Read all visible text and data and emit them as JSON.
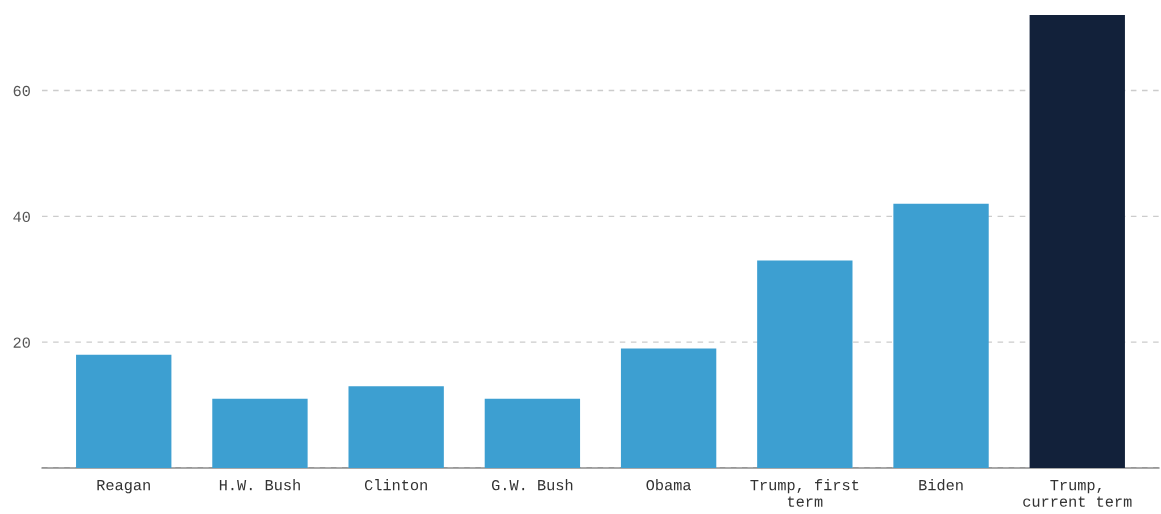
{
  "chart_data": {
    "type": "bar",
    "categories": [
      "Reagan",
      "H.W. Bush",
      "Clinton",
      "G.W. Bush",
      "Obama",
      "Trump, first\nterm",
      "Biden",
      "Trump,\ncurrent term"
    ],
    "values": [
      18,
      11,
      13,
      11,
      19,
      33,
      42,
      72
    ],
    "colors": [
      "#3d9fd1",
      "#3d9fd1",
      "#3d9fd1",
      "#3d9fd1",
      "#3d9fd1",
      "#3d9fd1",
      "#3d9fd1",
      "#12213a"
    ],
    "ylim": [
      0,
      72
    ],
    "yticks": [
      {
        "value": 0,
        "label": null
      },
      20,
      40,
      60
    ],
    "grid": "y",
    "line_style": "dashed"
  }
}
